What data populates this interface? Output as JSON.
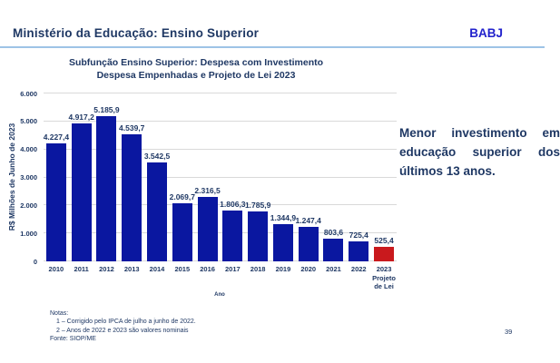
{
  "header": {
    "title": "Ministério da Educação: Ensino Superior",
    "logo": "BABJ",
    "rule_color": "#9DC3E6"
  },
  "chart_data": {
    "type": "bar",
    "title_line1": "Subfunção Ensino Superior: Despesa com Investimento",
    "title_line2": "Despesa Empenhadas e Projeto de Lei 2023",
    "xlabel": "Ano",
    "ylabel": "R$ Milhões de Junho de 2023",
    "ylim": [
      0,
      6000
    ],
    "ytick_step": 1000,
    "ytick_labels": [
      "0",
      "1.000",
      "2.000",
      "3.000",
      "4.000",
      "5.000",
      "6.000"
    ],
    "grid": "horizontal",
    "categories": [
      "2010",
      "2011",
      "2012",
      "2013",
      "2014",
      "2015",
      "2016",
      "2017",
      "2018",
      "2019",
      "2020",
      "2021",
      "2022",
      "2023"
    ],
    "category_sublabels": {
      "2023": [
        "Projeto",
        "de Lei"
      ]
    },
    "values": [
      4227.4,
      4917.2,
      5185.9,
      4539.7,
      3542.5,
      2069.7,
      2316.5,
      1806.3,
      1785.9,
      1344.9,
      1247.4,
      803.6,
      725.4,
      525.4
    ],
    "value_labels": [
      "4.227,4",
      "4.917,2",
      "5.185,9",
      "4.539,7",
      "3.542,5",
      "2.069,7",
      "2.316,5",
      "1.806,3",
      "1.785,9",
      "1.344,9",
      "1.247,4",
      "803,6",
      "725,4",
      "525,4"
    ],
    "bar_color": "#0A17A0",
    "highlight_color": "#C9191D",
    "highlight_index": 13,
    "text_color": "#1F3864",
    "gridline_color": "#D9D9D9"
  },
  "annotation": {
    "text": "Menor investimento em educação superior dos últimos 13 anos."
  },
  "notes": {
    "heading": "Notas:",
    "items": [
      "1 – Corrigido pelo IPCA de julho a junho de 2022.",
      "2 – Anos de 2022 e 2023 são valores nominais"
    ],
    "source": "Fonte: SIOP/ME"
  },
  "footer": {
    "page_number": "39"
  }
}
